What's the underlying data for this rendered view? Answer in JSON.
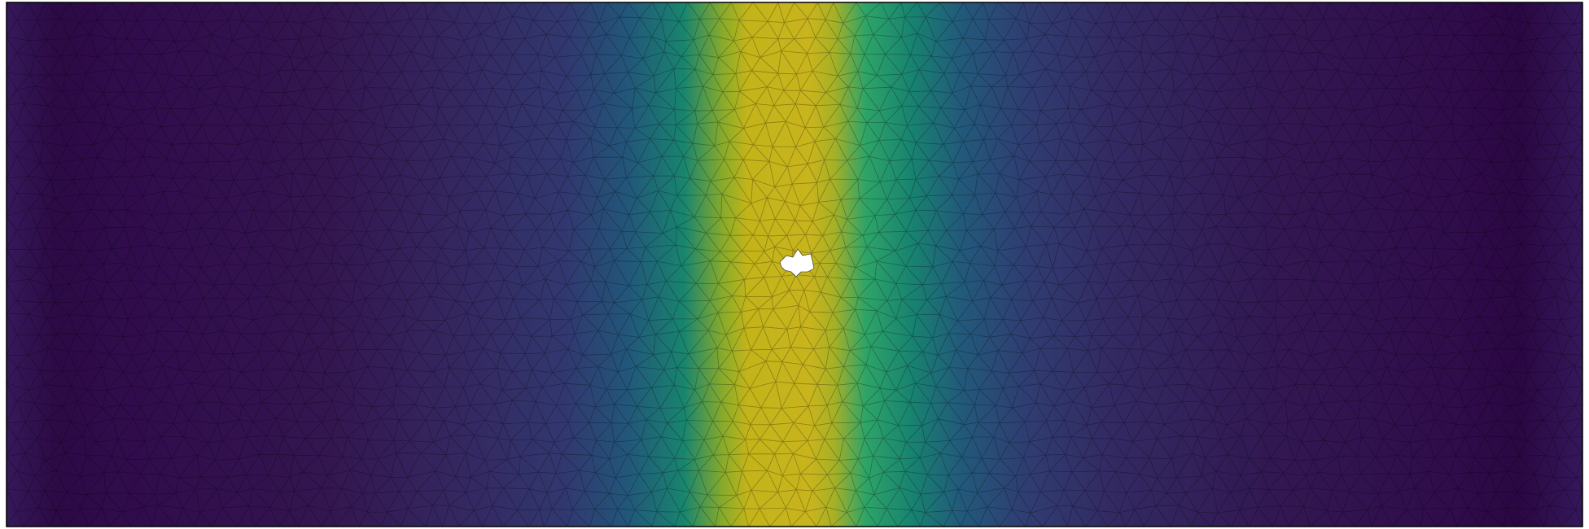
{
  "figure": {
    "kind": "finite-element mesh colour field",
    "colormap": "viridis",
    "colors": {
      "low": "#2f0c4a",
      "mid_low": "#33306f",
      "mid": "#1c6b79",
      "mid_high": "#2fa169",
      "high": "#c3b41a",
      "hole": "#ffffff",
      "mesh_edge": "#000000",
      "border": "#000000"
    },
    "field": {
      "variation_axis": "horizontal",
      "peak_position": "center",
      "mesh_visible": true,
      "hole_at_center": true
    }
  }
}
